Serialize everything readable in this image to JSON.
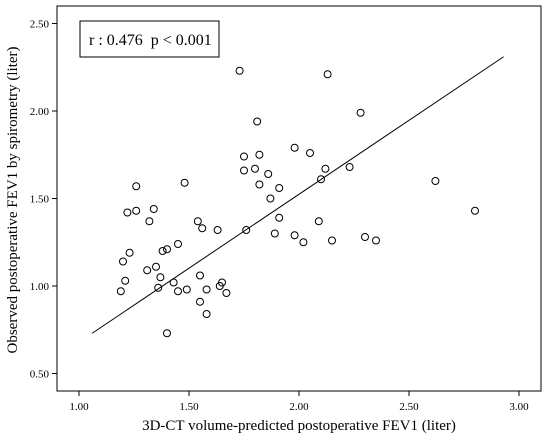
{
  "chart_data": {
    "type": "scatter",
    "title": "",
    "xlabel": "3D-CT volume-predicted postoperative FEV1 (liter)",
    "ylabel": "Observed postoperative FEV1 by spirometry (liter)",
    "xlim": [
      0.9,
      3.1
    ],
    "ylim": [
      0.4,
      2.6
    ],
    "xticks": [
      "1.00",
      "1.50",
      "2.00",
      "2.50",
      "3.00"
    ],
    "yticks": [
      "0.50",
      "1.00",
      "1.50",
      "2.00",
      "2.50"
    ],
    "xtick_values": [
      1.0,
      1.5,
      2.0,
      2.5,
      3.0
    ],
    "ytick_values": [
      0.5,
      1.0,
      1.5,
      2.0,
      2.5
    ],
    "grid": false,
    "annotation": "r : 0.476  p < 0.001",
    "fit_line": {
      "x": [
        1.06,
        2.93
      ],
      "y": [
        0.73,
        2.31
      ]
    },
    "points": [
      {
        "x": 1.19,
        "y": 0.97
      },
      {
        "x": 1.2,
        "y": 1.14
      },
      {
        "x": 1.21,
        "y": 1.03
      },
      {
        "x": 1.22,
        "y": 1.42
      },
      {
        "x": 1.23,
        "y": 1.19
      },
      {
        "x": 1.26,
        "y": 1.57
      },
      {
        "x": 1.26,
        "y": 1.43
      },
      {
        "x": 1.31,
        "y": 1.09
      },
      {
        "x": 1.32,
        "y": 1.37
      },
      {
        "x": 1.34,
        "y": 1.44
      },
      {
        "x": 1.35,
        "y": 1.11
      },
      {
        "x": 1.36,
        "y": 0.99
      },
      {
        "x": 1.37,
        "y": 1.05
      },
      {
        "x": 1.38,
        "y": 1.2
      },
      {
        "x": 1.4,
        "y": 1.21
      },
      {
        "x": 1.4,
        "y": 0.73
      },
      {
        "x": 1.43,
        "y": 1.02
      },
      {
        "x": 1.45,
        "y": 1.24
      },
      {
        "x": 1.45,
        "y": 0.97
      },
      {
        "x": 1.48,
        "y": 1.59
      },
      {
        "x": 1.49,
        "y": 0.98
      },
      {
        "x": 1.54,
        "y": 1.37
      },
      {
        "x": 1.55,
        "y": 1.06
      },
      {
        "x": 1.55,
        "y": 0.91
      },
      {
        "x": 1.56,
        "y": 1.33
      },
      {
        "x": 1.58,
        "y": 0.98
      },
      {
        "x": 1.58,
        "y": 0.84
      },
      {
        "x": 1.63,
        "y": 1.32
      },
      {
        "x": 1.64,
        "y": 1.0
      },
      {
        "x": 1.65,
        "y": 1.02
      },
      {
        "x": 1.67,
        "y": 0.96
      },
      {
        "x": 1.73,
        "y": 2.23
      },
      {
        "x": 1.75,
        "y": 1.74
      },
      {
        "x": 1.75,
        "y": 1.66
      },
      {
        "x": 1.76,
        "y": 1.32
      },
      {
        "x": 1.8,
        "y": 1.67
      },
      {
        "x": 1.81,
        "y": 1.94
      },
      {
        "x": 1.82,
        "y": 1.75
      },
      {
        "x": 1.82,
        "y": 1.58
      },
      {
        "x": 1.86,
        "y": 1.64
      },
      {
        "x": 1.87,
        "y": 1.5
      },
      {
        "x": 1.89,
        "y": 1.3
      },
      {
        "x": 1.91,
        "y": 1.56
      },
      {
        "x": 1.91,
        "y": 1.39
      },
      {
        "x": 1.98,
        "y": 1.79
      },
      {
        "x": 1.98,
        "y": 1.29
      },
      {
        "x": 2.02,
        "y": 1.25
      },
      {
        "x": 2.05,
        "y": 1.76
      },
      {
        "x": 2.09,
        "y": 1.37
      },
      {
        "x": 2.1,
        "y": 1.61
      },
      {
        "x": 2.12,
        "y": 1.67
      },
      {
        "x": 2.13,
        "y": 2.21
      },
      {
        "x": 2.15,
        "y": 1.26
      },
      {
        "x": 2.23,
        "y": 1.68
      },
      {
        "x": 2.28,
        "y": 1.99
      },
      {
        "x": 2.3,
        "y": 1.28
      },
      {
        "x": 2.35,
        "y": 1.26
      },
      {
        "x": 2.62,
        "y": 1.6
      },
      {
        "x": 2.8,
        "y": 1.43
      }
    ]
  }
}
